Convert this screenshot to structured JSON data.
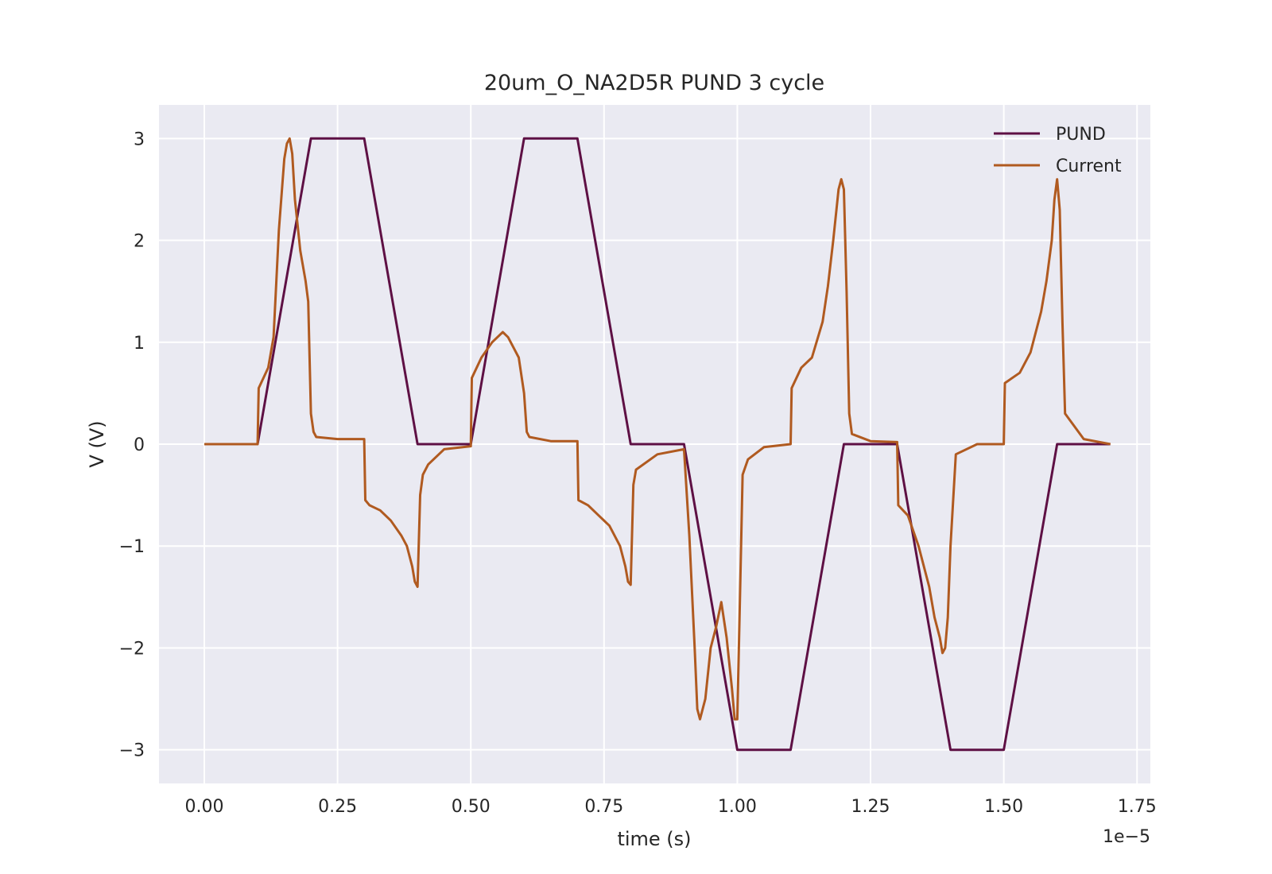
{
  "chart_data": {
    "type": "line",
    "title": "20um_O_NA2D5R PUND 3 cycle",
    "xlabel": "time (s)",
    "ylabel": "V (V)",
    "x_offset_label": "1e−5",
    "xlim": [
      -0.085,
      1.775
    ],
    "ylim": [
      -3.33,
      3.33
    ],
    "x_ticks": [
      0.0,
      0.25,
      0.5,
      0.75,
      1.0,
      1.25,
      1.5,
      1.75
    ],
    "x_tick_labels": [
      "0.00",
      "0.25",
      "0.50",
      "0.75",
      "1.00",
      "1.25",
      "1.50",
      "1.75"
    ],
    "y_ticks": [
      -3,
      -2,
      -1,
      0,
      1,
      2,
      3
    ],
    "y_tick_labels": [
      "−3",
      "−2",
      "−1",
      "0",
      "1",
      "2",
      "3"
    ],
    "grid": true,
    "background": "#eaeaf2",
    "legend_position": "upper right",
    "series": [
      {
        "name": "PUND",
        "color": "#5e1044",
        "x": [
          0.0,
          0.1,
          0.2,
          0.3,
          0.4,
          0.5,
          0.6,
          0.7,
          0.8,
          0.9,
          1.0,
          1.1,
          1.2,
          1.3,
          1.4,
          1.5,
          1.6,
          1.7
        ],
        "y": [
          0,
          0,
          3,
          3,
          0,
          0,
          3,
          3,
          0,
          0,
          -3,
          -3,
          0,
          0,
          -3,
          -3,
          0,
          0
        ]
      },
      {
        "name": "Current",
        "color": "#b05a20",
        "x": [
          0.0,
          0.05,
          0.1,
          0.102,
          0.12,
          0.13,
          0.14,
          0.15,
          0.155,
          0.16,
          0.165,
          0.17,
          0.18,
          0.19,
          0.195,
          0.2,
          0.205,
          0.21,
          0.25,
          0.3,
          0.302,
          0.31,
          0.33,
          0.35,
          0.37,
          0.38,
          0.39,
          0.395,
          0.4,
          0.405,
          0.41,
          0.42,
          0.45,
          0.5,
          0.502,
          0.52,
          0.54,
          0.56,
          0.57,
          0.58,
          0.59,
          0.6,
          0.605,
          0.61,
          0.65,
          0.7,
          0.702,
          0.72,
          0.74,
          0.76,
          0.78,
          0.79,
          0.795,
          0.8,
          0.805,
          0.81,
          0.85,
          0.9,
          0.91,
          0.92,
          0.925,
          0.93,
          0.94,
          0.95,
          0.96,
          0.97,
          0.98,
          0.99,
          0.995,
          1.0,
          1.005,
          1.01,
          1.02,
          1.05,
          1.1,
          1.102,
          1.12,
          1.14,
          1.16,
          1.17,
          1.18,
          1.19,
          1.195,
          1.2,
          1.205,
          1.21,
          1.215,
          1.25,
          1.3,
          1.302,
          1.32,
          1.34,
          1.36,
          1.37,
          1.38,
          1.385,
          1.39,
          1.395,
          1.4,
          1.41,
          1.45,
          1.5,
          1.502,
          1.53,
          1.55,
          1.57,
          1.58,
          1.59,
          1.595,
          1.6,
          1.605,
          1.61,
          1.615,
          1.65,
          1.7
        ],
        "y": [
          0.0,
          0.0,
          0.0,
          0.55,
          0.75,
          1.05,
          2.1,
          2.8,
          2.95,
          3.0,
          2.85,
          2.4,
          1.9,
          1.6,
          1.4,
          0.3,
          0.12,
          0.07,
          0.05,
          0.05,
          -0.55,
          -0.6,
          -0.65,
          -0.75,
          -0.9,
          -1.0,
          -1.2,
          -1.35,
          -1.4,
          -0.5,
          -0.3,
          -0.2,
          -0.05,
          -0.02,
          0.65,
          0.85,
          1.0,
          1.1,
          1.05,
          0.95,
          0.85,
          0.5,
          0.12,
          0.07,
          0.03,
          0.03,
          -0.55,
          -0.6,
          -0.7,
          -0.8,
          -1.0,
          -1.2,
          -1.35,
          -1.38,
          -0.4,
          -0.25,
          -0.1,
          -0.05,
          -0.9,
          -2.0,
          -2.6,
          -2.7,
          -2.5,
          -2.0,
          -1.8,
          -1.55,
          -1.9,
          -2.4,
          -2.7,
          -2.7,
          -1.5,
          -0.3,
          -0.15,
          -0.03,
          0.0,
          0.55,
          0.75,
          0.85,
          1.2,
          1.55,
          2.0,
          2.5,
          2.6,
          2.5,
          1.5,
          0.3,
          0.1,
          0.03,
          0.02,
          -0.6,
          -0.7,
          -1.0,
          -1.4,
          -1.7,
          -1.9,
          -2.05,
          -2.0,
          -1.7,
          -1.0,
          -0.1,
          0.0,
          0.0,
          0.6,
          0.7,
          0.9,
          1.3,
          1.6,
          2.0,
          2.4,
          2.6,
          2.3,
          1.2,
          0.3,
          0.05,
          0.0
        ]
      }
    ]
  }
}
